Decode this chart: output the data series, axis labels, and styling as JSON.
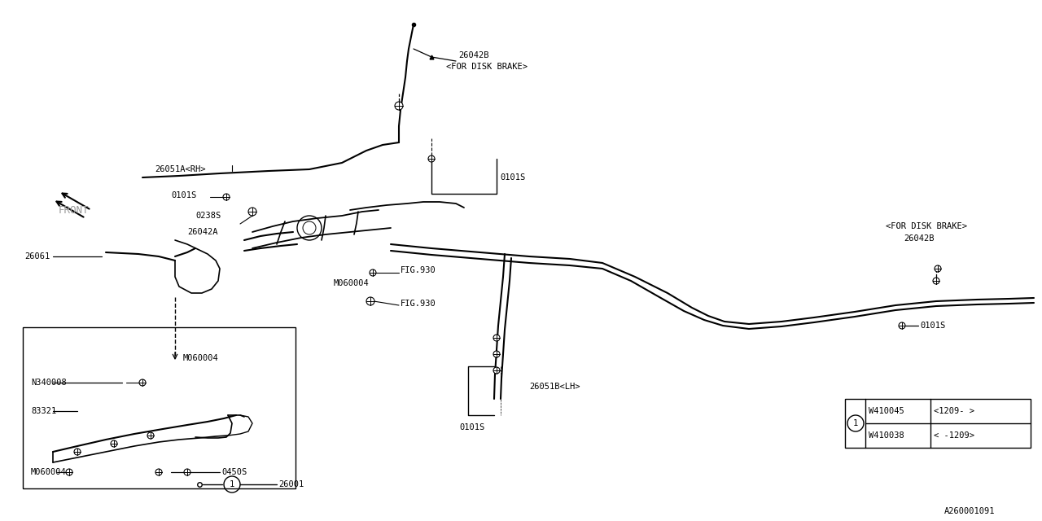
{
  "bg_color": "#ffffff",
  "line_color": "#000000",
  "diagram_id": "A260001091",
  "figsize": [
    12.8,
    6.4
  ],
  "dpi": 100,
  "W410038": "W410038",
  "W410045": "W410045",
  "range1": "< -1209>",
  "range2": "<1209- >",
  "label_26042B_top": "26042B",
  "label_for_disk_top": "<FOR DISK BRAKE>",
  "label_26051A_RH": "26051A<RH>",
  "label_0101S": "0101S",
  "label_0238S": "0238S",
  "label_26042A": "26042A",
  "label_FIG930": "FIG.930",
  "label_26061": "26061",
  "label_M060004": "M060004",
  "label_N340008": "N340008",
  "label_83321": "83321",
  "label_0450S": "0450S",
  "label_26001": "26001",
  "label_26051B_LH": "26051B<LH>",
  "label_for_disk_rt": "<FOR DISK BRAKE>",
  "label_26042B_rt": "26042B",
  "label_FRONT": "FRONT"
}
